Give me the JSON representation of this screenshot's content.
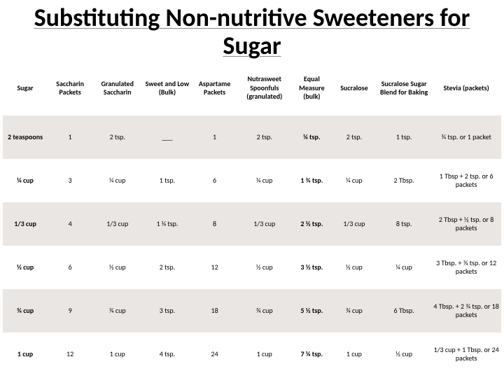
{
  "title": "Substituting Non-nutritive Sweeteners for Sugar",
  "columns": [
    "Sugar",
    "Saccharin Packets",
    "Granulated Saccharin",
    "Sweet and Low (Bulk)",
    "Aspartame Packets",
    "Nutrasweet Spoonfuls (granulated)",
    "Equal Measure (bulk)",
    "Sucralose",
    "Sucralose Sugar Blend for Baking",
    "Stevia (packets)"
  ],
  "rows": [
    [
      "2 teaspoons",
      "1",
      "2 tsp.",
      "___",
      "1",
      "2 tsp.",
      "¼ tsp.",
      "2 tsp.",
      "1 tsp.",
      "¾ tsp. or 1 packet"
    ],
    [
      "¼ cup",
      "3",
      "¼ cup",
      "1 tsp.",
      "6",
      "¼ cup",
      "1 ¾ tsp.",
      "¼ cup",
      "2 Tbsp.",
      "1 Tbsp + 2 tsp. or 6 packets"
    ],
    [
      "1/3 cup",
      "4",
      "1/3 cup",
      "1 ¼ tsp.",
      "8",
      "1/3 cup",
      "2 ½ tsp.",
      "1/3 cup",
      "8 tsp.",
      "2 Tbsp + ½ tsp. or 8 packets"
    ],
    [
      "½ cup",
      "6",
      "½ cup",
      "2 tsp.",
      "12",
      "½ cup",
      "3 ½ tsp.",
      "½ cup",
      "¼ cup",
      "3 Tbsp. + ¾ tsp. or 12 packets"
    ],
    [
      "¾ cup",
      "9",
      "¾ cup",
      "3 tsp.",
      "18",
      "¾ cup",
      "5 ½ tsp.",
      "¾ cup",
      "6 Tbsp.",
      "4 Tbsp. + 2 ¾ tsp. or 18 packets"
    ],
    [
      "1 cup",
      "12",
      "1 cup",
      "4 tsp.",
      "24",
      "1 cup",
      "7 ¼ tsp.",
      "1 cup",
      "½ cup",
      "1/3 cup + 1 Tbsp. or 24 packets"
    ]
  ],
  "bold_columns": [
    0,
    6
  ],
  "col_widths_pct": [
    9,
    9,
    10,
    10,
    9,
    11,
    8,
    9,
    11,
    14
  ],
  "title_fontsize": 36,
  "title_color": "#000000",
  "header_fontsize": 10,
  "cell_fontsize": 10,
  "row_band_color": "#e9e6e3",
  "background_color": "#ffffff"
}
